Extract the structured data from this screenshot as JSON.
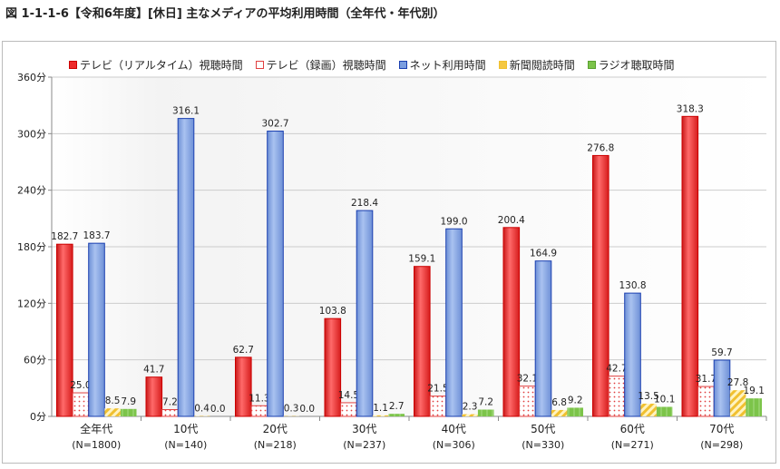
{
  "title": "図 1-1-1-6【令和6年度】[休日] 主なメディアの平均利用時間（全年代・年代別）",
  "chart_data": {
    "type": "bar",
    "title": "図 1-1-1-6【令和6年度】[休日] 主なメディアの平均利用時間（全年代・年代別）",
    "categories": [
      "全年代",
      "10代",
      "20代",
      "30代",
      "40代",
      "50代",
      "60代",
      "70代"
    ],
    "category_n": [
      "(N=1800)",
      "(N=140)",
      "(N=218)",
      "(N=237)",
      "(N=306)",
      "(N=330)",
      "(N=271)",
      "(N=298)"
    ],
    "yticks": [
      "0分",
      "60分",
      "120分",
      "180分",
      "240分",
      "300分",
      "360分"
    ],
    "ylim": [
      0,
      360
    ],
    "legend_position": "top",
    "series": [
      {
        "name": "テレビ（リアルタイム）視聴時間",
        "color": "#ee2a2a",
        "values": [
          182.7,
          41.7,
          62.7,
          103.8,
          159.1,
          200.4,
          276.8,
          318.3
        ]
      },
      {
        "name": "テレビ（録画）視聴時間",
        "color": "#e85050",
        "values": [
          25.0,
          7.2,
          11.3,
          14.5,
          21.5,
          32.1,
          42.7,
          31.7
        ]
      },
      {
        "name": "ネット利用時間",
        "color": "#7b9ee0",
        "values": [
          183.7,
          316.1,
          302.7,
          218.4,
          199.0,
          164.9,
          130.8,
          59.7
        ]
      },
      {
        "name": "新聞閲読時間",
        "color": "#f5c842",
        "values": [
          8.5,
          0.4,
          0.3,
          1.1,
          2.3,
          6.8,
          13.5,
          27.8
        ]
      },
      {
        "name": "ラジオ聴取時間",
        "color": "#7cc44a",
        "values": [
          7.9,
          0.0,
          0.0,
          2.7,
          7.2,
          9.2,
          10.1,
          19.1
        ]
      }
    ]
  }
}
